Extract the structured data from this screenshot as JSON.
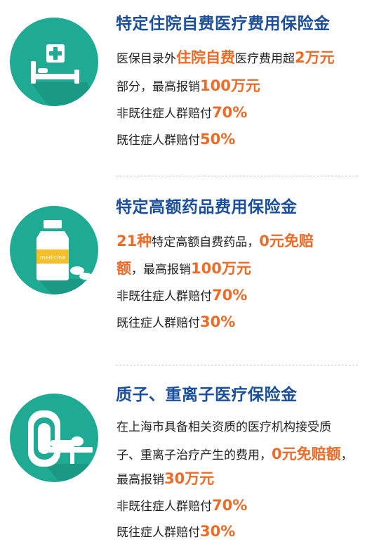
{
  "sections": [
    {
      "title": "特定住院自费医疗费用保险金",
      "icon": "hospital-bed-icon",
      "lines": [
        [
          {
            "t": "医保目录外"
          },
          {
            "t": "住院自费",
            "hl": true
          },
          {
            "t": "医疗费用超"
          },
          {
            "t": "2万元",
            "hl": true
          }
        ],
        [
          {
            "t": "部分，最高报销"
          },
          {
            "t": "100万元",
            "hl": true
          }
        ],
        [
          {
            "t": "非既往症人群赔付"
          },
          {
            "t": "70%",
            "hl": true
          }
        ],
        [
          {
            "t": "既往症人群赔付"
          },
          {
            "t": "50%",
            "hl": true
          }
        ]
      ]
    },
    {
      "title": "特定高额药品费用保险金",
      "icon": "medicine-bottle-icon",
      "bottle_label": "medicine",
      "lines": [
        [
          {
            "t": "21种",
            "hl": true
          },
          {
            "t": "特定高额自费药品，"
          },
          {
            "t": "0元免赔",
            "hl": true
          }
        ],
        [
          {
            "t": "额",
            "hl": true
          },
          {
            "t": "，最高报销"
          },
          {
            "t": "100万元",
            "hl": true
          }
        ],
        [
          {
            "t": "非既往症人群赔付"
          },
          {
            "t": "70%",
            "hl": true
          }
        ],
        [
          {
            "t": "既往症人群赔付"
          },
          {
            "t": "30%",
            "hl": true
          }
        ]
      ]
    },
    {
      "title": "质子、重离子医疗保险金",
      "icon": "ct-scanner-icon",
      "lines": [
        [
          {
            "t": "在上海市具备相关资质的医疗机构接受质"
          }
        ],
        [
          {
            "t": "子、重离子治疗产生的费用，"
          },
          {
            "t": "0元免赔额",
            "hl": true
          },
          {
            "t": "，"
          }
        ],
        [
          {
            "t": "最高报销"
          },
          {
            "t": "30万元",
            "hl": true
          }
        ],
        [
          {
            "t": "非既往症人群赔付"
          },
          {
            "t": "70%",
            "hl": true
          }
        ],
        [
          {
            "t": "既往症人群赔付"
          },
          {
            "t": "30%",
            "hl": true
          }
        ]
      ]
    }
  ],
  "colors": {
    "title": "#1b4f9c",
    "highlight": "#ee6a27",
    "icon_bg": "#1fab93",
    "body_text": "#222222"
  }
}
